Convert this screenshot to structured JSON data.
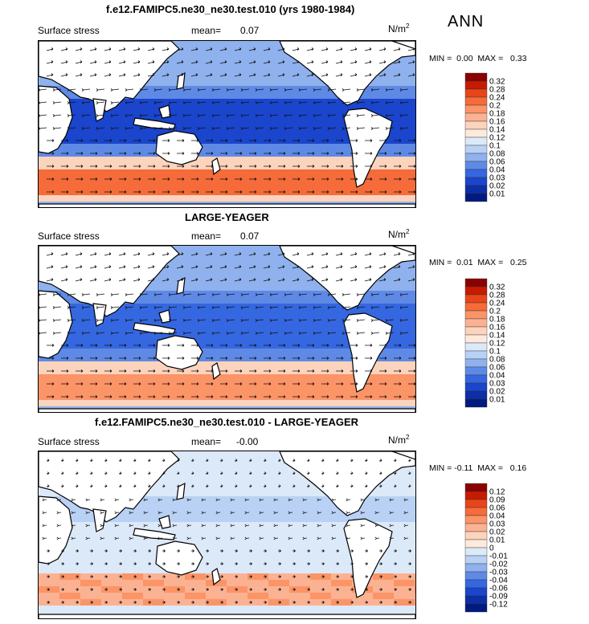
{
  "figure": {
    "season": "ANN",
    "units_label": "N/m",
    "units_exp": "2",
    "var_label": "Surface stress",
    "mean_label": "mean="
  },
  "panels": [
    {
      "title": "f.e12.FAMIPC5.ne30_ne30.test.010 (yrs 1980-1984)",
      "mean": "0.07",
      "min_label": "MIN =",
      "min": "0.00",
      "max_label": "MAX =",
      "max": "0.33",
      "levels": [
        "0.32",
        "0.28",
        "0.24",
        "0.2",
        "0.18",
        "0.16",
        "0.14",
        "0.12",
        "0.1",
        "0.08",
        "0.06",
        "0.04",
        "0.03",
        "0.02",
        "0.01"
      ],
      "colors": [
        "#8b0000",
        "#c61b00",
        "#e8451a",
        "#f56b3a",
        "#fb9466",
        "#fbb293",
        "#fcd3bc",
        "#fdeadd",
        "#dce9f8",
        "#b8d1f4",
        "#8fb1ee",
        "#5e8ae6",
        "#3567e0",
        "#1a45cc",
        "#0c2ea6",
        "#001a80"
      ]
    },
    {
      "title": "LARGE-YEAGER",
      "mean": "0.07",
      "min_label": "MIN =",
      "min": "0.01",
      "max_label": "MAX =",
      "max": "0.25",
      "levels": [
        "0.32",
        "0.28",
        "0.24",
        "0.2",
        "0.18",
        "0.16",
        "0.14",
        "0.12",
        "0.1",
        "0.08",
        "0.06",
        "0.04",
        "0.03",
        "0.02",
        "0.01"
      ],
      "colors": [
        "#8b0000",
        "#c61b00",
        "#e8451a",
        "#f56b3a",
        "#fb9466",
        "#fbb293",
        "#fcd3bc",
        "#fdeadd",
        "#dce9f8",
        "#b8d1f4",
        "#8fb1ee",
        "#5e8ae6",
        "#3567e0",
        "#1a45cc",
        "#0c2ea6",
        "#001a80"
      ]
    },
    {
      "title": "f.e12.FAMIPC5.ne30_ne30.test.010 - LARGE-YEAGER",
      "mean": "-0.00",
      "min_label": "MIN =",
      "min": "-0.11",
      "max_label": "MAX =",
      "max": "0.16",
      "levels": [
        "0.12",
        "0.09",
        "0.06",
        "0.04",
        "0.03",
        "0.02",
        "0.01",
        "0",
        "-0.01",
        "-0.02",
        "-0.03",
        "-0.04",
        "-0.06",
        "-0.09",
        "-0.12"
      ],
      "colors": [
        "#8b0000",
        "#c61b00",
        "#e8451a",
        "#f56b3a",
        "#fb9466",
        "#fbb293",
        "#fcd3bc",
        "#fdeadd",
        "#dce9f8",
        "#b8d1f4",
        "#8fb1ee",
        "#5e8ae6",
        "#3567e0",
        "#1a45cc",
        "#0c2ea6",
        "#001a80"
      ]
    }
  ],
  "chart_data": [
    {
      "type": "heatmap",
      "title": "f.e12.FAMIPC5.ne30_ne30.test.010 (yrs 1980-1984)",
      "variable": "Surface stress",
      "units": "N/m2",
      "mean": 0.07,
      "min": 0.0,
      "max": 0.33,
      "contour_levels": [
        0.01,
        0.02,
        0.03,
        0.04,
        0.06,
        0.08,
        0.1,
        0.12,
        0.14,
        0.16,
        0.18,
        0.2,
        0.24,
        0.28,
        0.32
      ],
      "overlay": "wind stress vectors"
    },
    {
      "type": "heatmap",
      "title": "LARGE-YEAGER",
      "variable": "Surface stress",
      "units": "N/m2",
      "mean": 0.07,
      "min": 0.01,
      "max": 0.25,
      "contour_levels": [
        0.01,
        0.02,
        0.03,
        0.04,
        0.06,
        0.08,
        0.1,
        0.12,
        0.14,
        0.16,
        0.18,
        0.2,
        0.24,
        0.28,
        0.32
      ],
      "overlay": "wind stress vectors"
    },
    {
      "type": "heatmap",
      "title": "f.e12.FAMIPC5.ne30_ne30.test.010 - LARGE-YEAGER",
      "variable": "Surface stress",
      "units": "N/m2",
      "mean": -0.0,
      "min": -0.11,
      "max": 0.16,
      "contour_levels": [
        -0.12,
        -0.09,
        -0.06,
        -0.04,
        -0.03,
        -0.02,
        -0.01,
        0,
        0.01,
        0.02,
        0.03,
        0.04,
        0.06,
        0.09,
        0.12
      ],
      "overlay": "wind stress vectors"
    }
  ]
}
